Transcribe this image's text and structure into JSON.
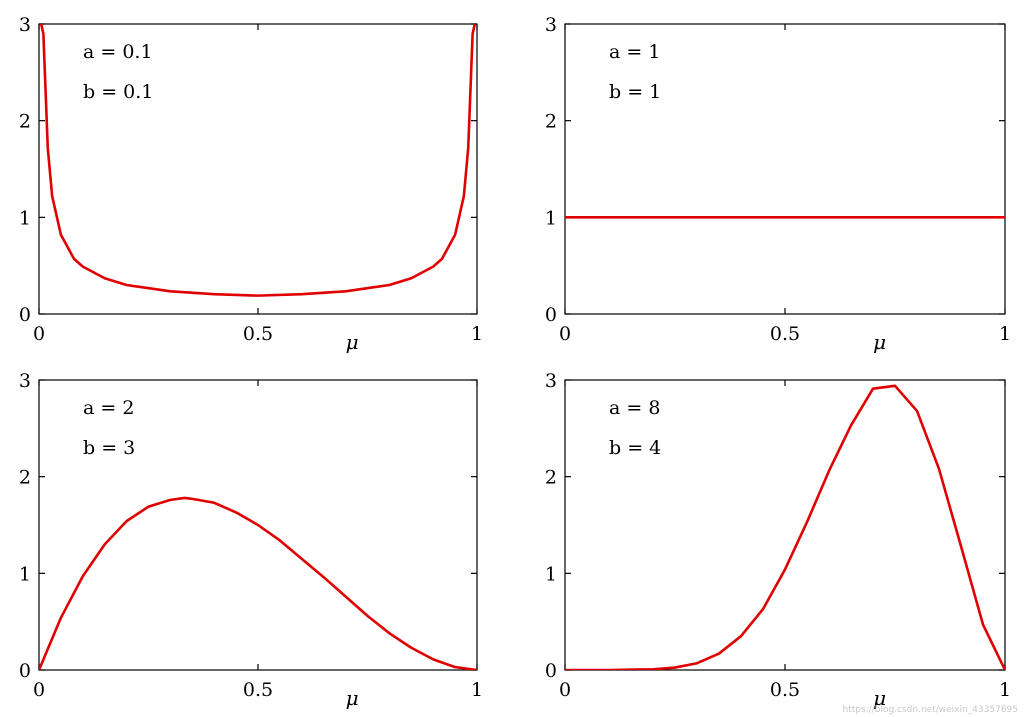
{
  "colors": {
    "curve": "#e00000",
    "axes": "#000000"
  },
  "watermark": "https://blog.csdn.net/weixin_43357695",
  "chart_data": [
    {
      "type": "line",
      "xlabel": "μ",
      "xlim": [
        0,
        1
      ],
      "ylim": [
        0,
        3
      ],
      "xticks": [
        "0",
        "0.5",
        "1"
      ],
      "yticks": [
        "0",
        "1",
        "2",
        "3"
      ],
      "annotations": [
        "a = 0.1",
        "b = 0.1"
      ],
      "params": {
        "a": 0.1,
        "b": 0.1
      },
      "series": [
        {
          "x": [
            0.005,
            0.01,
            0.02,
            0.03,
            0.05,
            0.08,
            0.1,
            0.15,
            0.2,
            0.3,
            0.4,
            0.5,
            0.6,
            0.7,
            0.8,
            0.85,
            0.9,
            0.92,
            0.95,
            0.97,
            0.98,
            0.99,
            0.995
          ],
          "y": [
            3.0,
            2.9,
            1.72,
            1.22,
            0.82,
            0.57,
            0.49,
            0.37,
            0.3,
            0.235,
            0.205,
            0.19,
            0.205,
            0.235,
            0.3,
            0.37,
            0.49,
            0.57,
            0.82,
            1.22,
            1.72,
            2.9,
            3.0
          ]
        }
      ]
    },
    {
      "type": "line",
      "xlabel": "μ",
      "xlim": [
        0,
        1
      ],
      "ylim": [
        0,
        3
      ],
      "xticks": [
        "0",
        "0.5",
        "1"
      ],
      "yticks": [
        "0",
        "1",
        "2",
        "3"
      ],
      "annotations": [
        "a = 1",
        "b = 1"
      ],
      "params": {
        "a": 1,
        "b": 1
      },
      "series": [
        {
          "x": [
            0,
            1
          ],
          "y": [
            1,
            1
          ]
        }
      ]
    },
    {
      "type": "line",
      "xlabel": "μ",
      "xlim": [
        0,
        1
      ],
      "ylim": [
        0,
        3
      ],
      "xticks": [
        "0",
        "0.5",
        "1"
      ],
      "yticks": [
        "0",
        "1",
        "2",
        "3"
      ],
      "annotations": [
        "a = 2",
        "b = 3"
      ],
      "params": {
        "a": 2,
        "b": 3
      },
      "series": [
        {
          "x": [
            0,
            0.05,
            0.1,
            0.15,
            0.2,
            0.25,
            0.3,
            0.333,
            0.35,
            0.4,
            0.45,
            0.5,
            0.55,
            0.6,
            0.65,
            0.7,
            0.75,
            0.8,
            0.85,
            0.9,
            0.95,
            1
          ],
          "y": [
            0,
            0.54,
            0.97,
            1.3,
            1.54,
            1.69,
            1.76,
            1.78,
            1.77,
            1.73,
            1.63,
            1.5,
            1.34,
            1.15,
            0.96,
            0.76,
            0.56,
            0.38,
            0.23,
            0.11,
            0.03,
            0
          ]
        }
      ]
    },
    {
      "type": "line",
      "xlabel": "μ",
      "xlim": [
        0,
        1
      ],
      "ylim": [
        0,
        3
      ],
      "xticks": [
        "0",
        "0.5",
        "1"
      ],
      "yticks": [
        "0",
        "1",
        "2",
        "3"
      ],
      "annotations": [
        "a = 8",
        "b = 4"
      ],
      "params": {
        "a": 8,
        "b": 4
      },
      "series": [
        {
          "x": [
            0,
            0.1,
            0.2,
            0.25,
            0.3,
            0.35,
            0.4,
            0.45,
            0.5,
            0.55,
            0.6,
            0.65,
            0.7,
            0.75,
            0.8,
            0.85,
            0.9,
            0.95,
            1
          ],
          "y": [
            0,
            0.0,
            0.007,
            0.025,
            0.07,
            0.17,
            0.35,
            0.63,
            1.04,
            1.53,
            2.06,
            2.53,
            2.91,
            2.94,
            2.68,
            2.08,
            1.28,
            0.47,
            0
          ]
        }
      ]
    }
  ]
}
